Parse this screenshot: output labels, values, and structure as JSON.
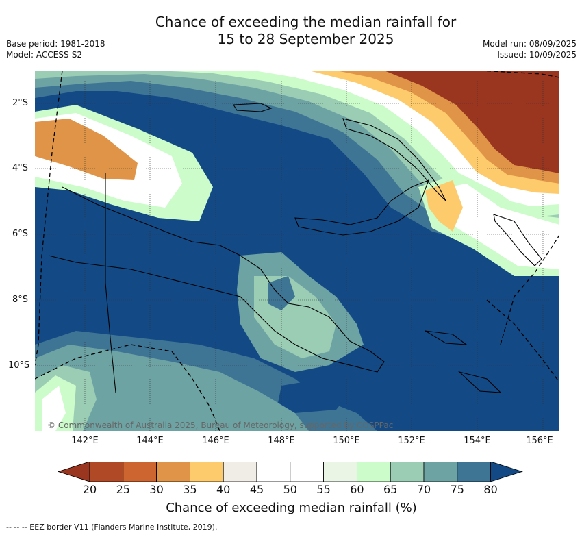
{
  "title_line1": "Chance of exceeding the median rainfall for",
  "title_line2": "15 to 28 September 2025",
  "base_period": "Base period: 1981-2018",
  "model": "Model: ACCESS-S2",
  "model_run": "Model run: 08/09/2025",
  "issued": "Issued: 10/09/2025",
  "lat_ticks": [
    "2°S",
    "4°S",
    "6°S",
    "8°S",
    "10°S"
  ],
  "lon_ticks": [
    "142°E",
    "144°E",
    "146°E",
    "148°E",
    "150°E",
    "152°E",
    "154°E",
    "156°E"
  ],
  "copyright": "© Commonwealth of Australia 2025, Bureau of Meteorology, supported by COSPPac",
  "colorbar": {
    "ticks": [
      "20",
      "25",
      "30",
      "35",
      "40",
      "45",
      "50",
      "55",
      "60",
      "65",
      "70",
      "75",
      "80"
    ],
    "colors": [
      "#b04a26",
      "#cc6530",
      "#e09448",
      "#fdcb6c",
      "#f0ede6",
      "#ffffff",
      "#ffffff",
      "#eaf5e6",
      "#ccfcc9",
      "#9bcdb5",
      "#6ea3a4",
      "#3f7594"
    ],
    "low_extend_color": "#9a3520",
    "high_extend_color": "#134a86",
    "label": "Chance of exceeding median rainfall (%)"
  },
  "legend_footnote": "-- -- -- EEZ border V11 (Flanders Marine Institute, 2019)."
}
